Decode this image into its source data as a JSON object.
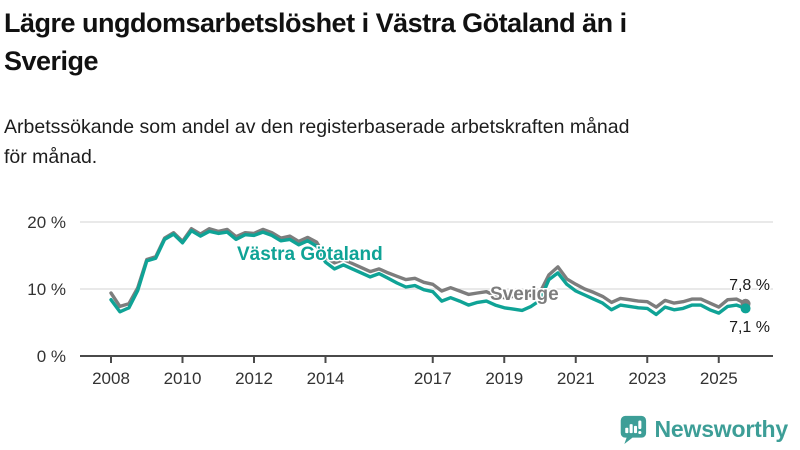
{
  "header": {
    "title_line1": "Lägre ungdomsarbetslöshet i Västra Götaland än i",
    "title_line2": "Sverige",
    "subtitle_line1": "Arbetssökande som andel av den registerbaserade arbetskraften månad",
    "subtitle_line2": "för månad."
  },
  "chart_data": {
    "type": "line",
    "title": "Lägre ungdomsarbetslöshet i Västra Götaland än i Sverige",
    "subtitle": "Arbetssökande som andel av den registerbaserade arbetskraften månad för månad.",
    "unit": "%",
    "grid": "horizontal",
    "legend": "inline-labels",
    "xlim": [
      2007.25,
      2026.5
    ],
    "ylim": [
      0,
      22.5
    ],
    "x": [
      2008,
      2008.25,
      2008.5,
      2008.75,
      2009,
      2009.25,
      2009.5,
      2009.75,
      2010,
      2010.25,
      2010.5,
      2010.75,
      2011,
      2011.25,
      2011.5,
      2011.75,
      2012,
      2012.25,
      2012.5,
      2012.75,
      2013,
      2013.25,
      2013.5,
      2013.75,
      2014,
      2014.25,
      2014.5,
      2014.75,
      2015,
      2015.25,
      2015.5,
      2015.75,
      2016,
      2016.25,
      2016.5,
      2016.75,
      2017,
      2017.25,
      2017.5,
      2017.75,
      2018,
      2018.25,
      2018.5,
      2018.75,
      2019,
      2019.25,
      2019.5,
      2019.75,
      2020,
      2020.25,
      2020.5,
      2020.75,
      2021,
      2021.25,
      2021.5,
      2021.75,
      2022,
      2022.25,
      2022.5,
      2022.75,
      2023,
      2023.25,
      2023.5,
      2023.75,
      2024,
      2024.25,
      2024.5,
      2024.75,
      2025,
      2025.25,
      2025.5,
      2025.75
    ],
    "series": [
      {
        "name": "Sverige",
        "color": "#7d7d7d",
        "end_label": "7,8 %",
        "values": [
          9.4,
          7.4,
          7.8,
          10.2,
          14.4,
          14.8,
          17.6,
          18.4,
          17.1,
          19.0,
          18.2,
          19.0,
          18.6,
          18.9,
          17.8,
          18.4,
          18.3,
          18.9,
          18.4,
          17.6,
          17.9,
          17.1,
          17.7,
          17.0,
          14.8,
          13.9,
          14.4,
          13.8,
          13.2,
          12.6,
          13.0,
          12.4,
          11.9,
          11.4,
          11.6,
          11.0,
          10.7,
          9.7,
          10.2,
          9.7,
          9.2,
          9.4,
          9.6,
          9.0,
          8.7,
          8.9,
          9.2,
          9.0,
          9.5,
          12.1,
          13.3,
          11.5,
          10.7,
          10.0,
          9.5,
          8.9,
          8.0,
          8.6,
          8.4,
          8.2,
          8.1,
          7.3,
          8.3,
          7.9,
          8.1,
          8.5,
          8.5,
          7.9,
          7.3,
          8.4,
          8.5,
          7.8
        ]
      },
      {
        "name": "Västra Götaland",
        "color": "#0fa396",
        "end_label": "7,1 %",
        "values": [
          8.4,
          6.6,
          7.2,
          9.8,
          14.2,
          14.6,
          17.4,
          18.2,
          16.9,
          18.7,
          17.9,
          18.6,
          18.3,
          18.5,
          17.4,
          18.1,
          18.0,
          18.5,
          18.0,
          17.2,
          17.4,
          16.6,
          17.2,
          16.4,
          14.0,
          13.0,
          13.6,
          13.0,
          12.4,
          11.8,
          12.3,
          11.6,
          10.9,
          10.3,
          10.5,
          9.9,
          9.6,
          8.2,
          8.7,
          8.2,
          7.6,
          8.0,
          8.2,
          7.6,
          7.2,
          7.0,
          6.8,
          7.4,
          8.3,
          11.4,
          12.4,
          10.7,
          9.7,
          9.1,
          8.5,
          7.9,
          6.9,
          7.6,
          7.4,
          7.2,
          7.1,
          6.2,
          7.3,
          6.9,
          7.1,
          7.6,
          7.6,
          6.9,
          6.4,
          7.4,
          7.6,
          7.1
        ]
      }
    ],
    "xticks": {
      "values": [
        2008,
        2010,
        2012,
        2014,
        2017,
        2019,
        2021,
        2023,
        2025
      ],
      "labels": [
        "2008",
        "2010",
        "2012",
        "2014",
        "2017",
        "2019",
        "2021",
        "2023",
        "2025"
      ]
    },
    "yticks": {
      "values": [
        0,
        10,
        20
      ],
      "labels": [
        "0 %",
        "10 %",
        "20 %"
      ]
    }
  },
  "colors": {
    "vastra_gotaland": "#0fa396",
    "sverige": "#7d7d7d",
    "gridline": "#dcdcdc",
    "axis": "#4a4a4a",
    "logo": "#3d9e97"
  },
  "branding": {
    "logo_text": "Newsworthy",
    "logo_icon": "bar-chart-speech-bubble"
  }
}
